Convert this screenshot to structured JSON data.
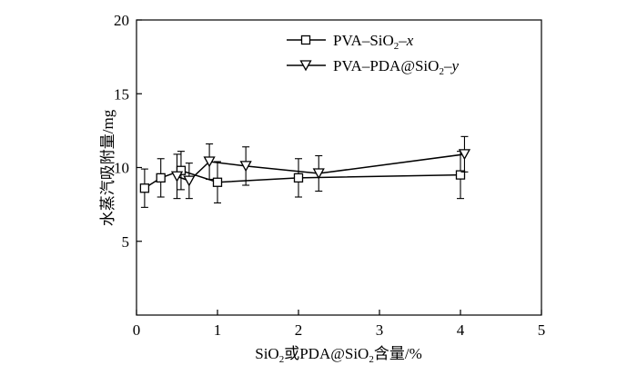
{
  "chart_data": {
    "type": "line",
    "title": "",
    "xlabel": {
      "prefix": "SiO",
      "sub1": "2",
      "middle": "或PDA@SiO",
      "sub2": "2",
      "suffix": "含量/%"
    },
    "ylabel": "水蒸汽吸附量/mg",
    "xlim": [
      0,
      5
    ],
    "ylim": [
      0,
      20
    ],
    "xticks": [
      0,
      1,
      2,
      3,
      4,
      5
    ],
    "yticks": [
      5,
      10,
      15,
      20
    ],
    "xtick_labels": [
      "0",
      "1",
      "2",
      "3",
      "4",
      "5"
    ],
    "ytick_labels": [
      "5",
      "10",
      "15",
      "20"
    ],
    "legend_position": "top-right",
    "series": [
      {
        "name": "PVA-SiO2-x",
        "legend": {
          "prefix": "PVA–SiO",
          "sub": "2",
          "suffix": "–x"
        },
        "marker": "square",
        "x": [
          0.1,
          0.3,
          0.55,
          1.0,
          2.0,
          4.0
        ],
        "y": [
          8.6,
          9.3,
          9.8,
          9.0,
          9.3,
          9.5
        ],
        "err": [
          1.3,
          1.3,
          1.3,
          1.4,
          1.3,
          1.6
        ]
      },
      {
        "name": "PVA-PDA@SiO2-y",
        "legend": {
          "prefix": "PVA–PDA@SiO",
          "sub": "2",
          "suffix": "–y"
        },
        "marker": "triangle-down",
        "x": [
          0.5,
          0.65,
          0.9,
          1.35,
          2.25,
          4.05
        ],
        "y": [
          9.4,
          9.1,
          10.4,
          10.1,
          9.6,
          10.9
        ],
        "err": [
          1.5,
          1.2,
          1.2,
          1.3,
          1.2,
          1.2
        ]
      }
    ]
  }
}
